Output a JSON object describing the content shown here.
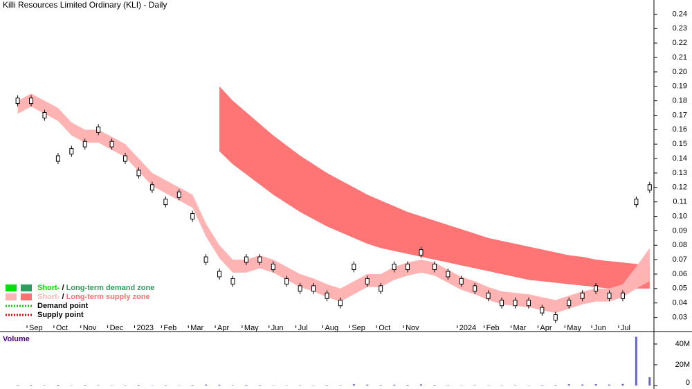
{
  "chart_data": {
    "type": "candlestick",
    "title": "Killi Resources Limited Ordinary (KLI) - Daily",
    "categories": [
      null,
      "Sep",
      null,
      "Oct",
      null,
      "Nov",
      null,
      "Dec",
      null,
      "2023",
      null,
      "Feb",
      null,
      "Mar",
      null,
      "Apr",
      null,
      "May",
      null,
      "Jun",
      null,
      "Jul",
      null,
      "Aug",
      null,
      "Sep",
      null,
      "Oct",
      null,
      "Nov",
      null,
      null,
      null,
      "2024",
      null,
      "Feb",
      null,
      "Mar",
      null,
      "Apr",
      null,
      "May",
      null,
      "Jun",
      null,
      "Jul",
      null,
      null
    ],
    "series": [
      {
        "name": "Price",
        "color": "#000000",
        "values": [
          0.18,
          0.18,
          0.17,
          0.14,
          0.145,
          0.15,
          0.16,
          0.15,
          0.14,
          0.13,
          0.12,
          0.11,
          0.115,
          0.1,
          0.07,
          0.06,
          0.055,
          0.07,
          0.07,
          0.065,
          0.055,
          0.05,
          0.05,
          0.045,
          0.04,
          0.065,
          0.055,
          0.05,
          0.065,
          0.065,
          0.075,
          0.065,
          0.06,
          0.055,
          0.05,
          0.045,
          0.04,
          0.04,
          0.04,
          0.035,
          0.03,
          0.04,
          0.045,
          0.05,
          0.045,
          0.045,
          0.11,
          0.12
        ]
      }
    ],
    "short_zone": {
      "color": "#ffb3b3",
      "upper": [
        0.18,
        0.185,
        0.18,
        0.175,
        0.165,
        0.16,
        0.16,
        0.155,
        0.15,
        0.14,
        0.13,
        0.125,
        0.12,
        0.115,
        0.095,
        0.08,
        0.07,
        0.07,
        0.073,
        0.07,
        0.065,
        0.06,
        0.057,
        0.053,
        0.05,
        0.055,
        0.06,
        0.06,
        0.065,
        0.068,
        0.07,
        0.068,
        0.063,
        0.058,
        0.055,
        0.051,
        0.048,
        0.047,
        0.046,
        0.044,
        0.042,
        0.045,
        0.048,
        0.05,
        0.05,
        0.053,
        0.065,
        0.078
      ],
      "lower": [
        0.171,
        0.176,
        0.171,
        0.166,
        0.156,
        0.151,
        0.151,
        0.146,
        0.141,
        0.131,
        0.121,
        0.116,
        0.111,
        0.106,
        0.086,
        0.071,
        0.061,
        0.061,
        0.064,
        0.061,
        0.056,
        0.051,
        0.048,
        0.044,
        0.041,
        0.046,
        0.051,
        0.051,
        0.056,
        0.059,
        0.061,
        0.059,
        0.054,
        0.049,
        0.046,
        0.042,
        0.039,
        0.038,
        0.037,
        0.035,
        0.033,
        0.036,
        0.039,
        0.041,
        0.041,
        0.044,
        0.05,
        0.055
      ]
    },
    "long_zone": {
      "color": "#ff7575",
      "upper": [
        null,
        null,
        null,
        null,
        null,
        null,
        null,
        null,
        null,
        null,
        null,
        null,
        null,
        null,
        null,
        0.19,
        0.18,
        0.172,
        0.164,
        0.156,
        0.149,
        0.142,
        0.136,
        0.13,
        0.125,
        0.12,
        0.115,
        0.111,
        0.107,
        0.103,
        0.1,
        0.097,
        0.094,
        0.091,
        0.088,
        0.085,
        0.083,
        0.081,
        0.079,
        0.077,
        0.075,
        0.073,
        0.072,
        0.07,
        0.069,
        0.068,
        0.067,
        0.066
      ],
      "lower": [
        null,
        null,
        null,
        null,
        null,
        null,
        null,
        null,
        null,
        null,
        null,
        null,
        null,
        null,
        null,
        0.145,
        0.136,
        0.129,
        0.122,
        0.115,
        0.109,
        0.103,
        0.098,
        0.093,
        0.089,
        0.085,
        0.081,
        0.078,
        0.076,
        0.074,
        0.072,
        0.07,
        0.068,
        0.066,
        0.064,
        0.062,
        0.06,
        0.058,
        0.056,
        0.055,
        0.054,
        0.053,
        0.052,
        0.051,
        0.05,
        0.05,
        0.05,
        0.05
      ]
    },
    "ylim": [
      0.025,
      0.245
    ],
    "yticks": [
      0.03,
      0.04,
      0.05,
      0.06,
      0.07,
      0.08,
      0.09,
      {
        "value": 0.1,
        "label": "0.10"
      },
      0.11,
      0.12,
      0.13,
      0.14,
      0.15,
      0.16,
      0.17,
      0.18,
      0.19,
      {
        "value": 0.2,
        "label": "0.20"
      },
      0.21,
      0.22,
      0.23,
      0.24
    ],
    "volume": {
      "title": "Volume",
      "color": "#6666cc",
      "values": [
        500000,
        600000,
        400000,
        700000,
        300000,
        500000,
        400000,
        300000,
        400000,
        600000,
        300000,
        400000,
        300000,
        500000,
        900000,
        800000,
        400000,
        700000,
        500000,
        300000,
        300000,
        400000,
        300000,
        500000,
        400000,
        1200000,
        900000,
        500000,
        800000,
        700000,
        1100000,
        600000,
        400000,
        300000,
        400000,
        300000,
        300000,
        400000,
        300000,
        500000,
        600000,
        1200000,
        1000000,
        1300000,
        900000,
        1500000,
        47000000,
        8000000
      ],
      "ylim": [
        0,
        48000000
      ],
      "yticks": [
        0,
        {
          "value": 20000000,
          "label": "20M"
        },
        {
          "value": 40000000,
          "label": "40M"
        }
      ]
    },
    "legend": [
      {
        "short": "Short-",
        "sep": " / ",
        "long": "Long-term demand zone",
        "short_color": "#00e000",
        "long_color": "#2e9e5e"
      },
      {
        "short": "Short-",
        "sep": " / ",
        "long": "Long-term supply zone",
        "short_color": "#ffb3b3",
        "long_color": "#ff7070"
      },
      {
        "label": "Demand point",
        "color": "#00cc00"
      },
      {
        "label": "Supply point",
        "color": "#dd0000"
      }
    ]
  }
}
